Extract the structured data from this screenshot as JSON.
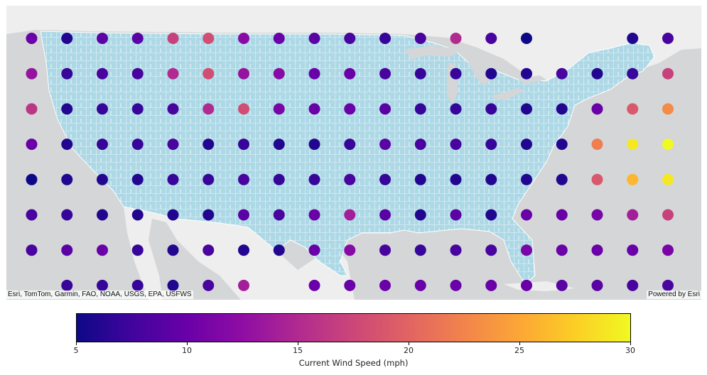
{
  "map": {
    "attribution_left": "Esri, TomTom, Garmin, FAO, NOAA, USGS, EPA, USFWS",
    "attribution_right": "Powered by Esri",
    "colors": {
      "land": "#add8e6",
      "county_lines": "#ffffff",
      "water": "#d4d6d7",
      "other_land": "#eeeeee"
    }
  },
  "colorbar": {
    "label": "Current Wind Speed (mph)",
    "min": 5,
    "max": 30,
    "ticks": [
      5,
      10,
      15,
      20,
      25,
      30
    ],
    "colormap": "plasma"
  },
  "chart_data": {
    "type": "scatter",
    "title": "",
    "value_label": "Current Wind Speed (mph)",
    "grid_columns": 19,
    "grid_rows": 8,
    "note": "Wind speed (mph) at each grid point, rows north to south, columns west to east; null = no point shown",
    "values": [
      [
        10,
        6,
        9,
        9,
        17,
        18,
        12,
        10,
        9,
        8,
        7,
        8,
        15,
        8,
        5,
        null,
        null,
        6,
        8
      ],
      [
        13,
        7,
        8,
        8,
        15,
        18,
        13,
        12,
        10,
        10,
        8,
        7,
        7,
        6,
        6,
        8,
        6,
        7,
        17
      ],
      [
        16,
        6,
        7,
        7,
        8,
        15,
        18,
        11,
        10,
        10,
        9,
        7,
        7,
        7,
        6,
        6,
        10,
        19,
        23
      ],
      [
        10,
        6,
        7,
        7,
        8,
        6,
        7,
        6,
        6,
        7,
        9,
        8,
        8,
        7,
        6,
        6,
        22,
        29,
        30
      ],
      [
        5,
        6,
        6,
        6,
        7,
        7,
        8,
        7,
        7,
        8,
        7,
        6,
        6,
        6,
        6,
        6,
        19,
        26,
        29
      ],
      [
        8,
        7,
        6,
        6,
        6,
        6,
        9,
        8,
        10,
        14,
        9,
        6,
        9,
        6,
        10,
        10,
        11,
        14,
        17
      ],
      [
        8,
        9,
        10,
        7,
        6,
        8,
        6,
        6,
        10,
        12,
        8,
        7,
        8,
        8,
        11,
        10,
        10,
        10,
        11
      ],
      [
        null,
        7,
        7,
        7,
        6,
        8,
        14,
        null,
        10,
        10,
        10,
        10,
        10,
        10,
        10,
        9,
        9,
        8,
        8
      ]
    ]
  }
}
